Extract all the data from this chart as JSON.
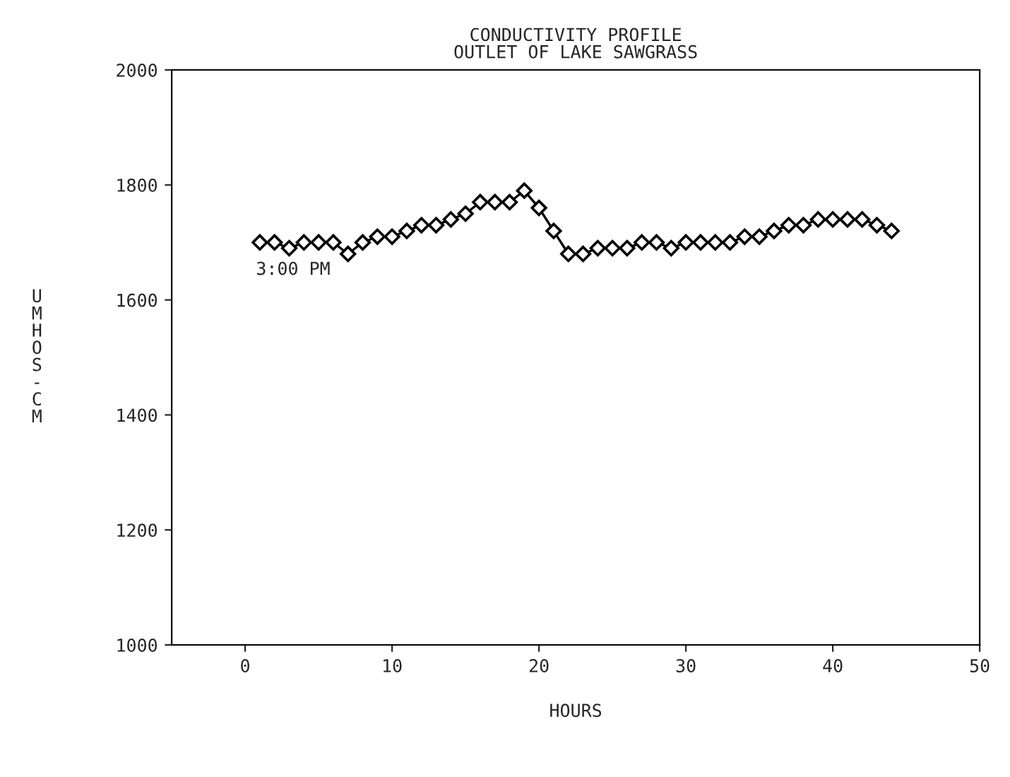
{
  "chart_data": {
    "type": "line",
    "title": "CONDUCTIVITY PROFILE",
    "subtitle": "OUTLET OF LAKE SAWGRASS",
    "xlabel": "HOURS",
    "ylabel": "UMHOS-CM",
    "x": [
      1,
      2,
      3,
      4,
      5,
      6,
      7,
      8,
      9,
      10,
      11,
      12,
      13,
      14,
      15,
      16,
      17,
      18,
      19,
      20,
      21,
      22,
      23,
      24,
      25,
      26,
      27,
      28,
      29,
      30,
      31,
      32,
      33,
      34,
      35,
      36,
      37,
      38,
      39,
      40,
      41,
      42,
      43,
      44
    ],
    "series": [
      {
        "color": "#000000",
        "values": [
          1700,
          1700,
          1690,
          1700,
          1700,
          1700,
          1680,
          1700,
          1710,
          1710,
          1720,
          1730,
          1730,
          1740,
          1750,
          1770,
          1770,
          1770,
          1790,
          1760,
          1720,
          1680,
          1680,
          1690,
          1690,
          1690,
          1700,
          1700,
          1690,
          1700,
          1700,
          1700,
          1700,
          1710,
          1710,
          1720,
          1730,
          1730,
          1740,
          1740,
          1740,
          1740,
          1730,
          1720
        ]
      }
    ],
    "annotations": [
      {
        "text": "3:00 PM",
        "x": 1,
        "y": 1700
      }
    ],
    "xlim": [
      -5,
      50
    ],
    "xticks": [
      0,
      10,
      20,
      30,
      40,
      50
    ],
    "ylim": [
      1000,
      2000
    ],
    "yticks": [
      1000,
      1200,
      1400,
      1600,
      1800,
      2000
    ],
    "grid": false,
    "legend": false,
    "marker": "diamond",
    "line_style": "solid"
  }
}
